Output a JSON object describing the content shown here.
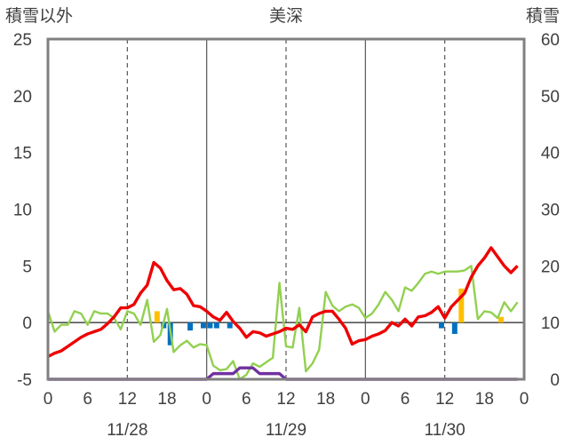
{
  "chart_data": {
    "type": "line",
    "title": "美深",
    "left_axis_label": "積雪以外",
    "right_axis_label": "積雪",
    "left_ylim": [
      -5,
      25
    ],
    "left_yticks": [
      -5,
      0,
      5,
      10,
      15,
      20,
      25
    ],
    "right_ylim": [
      0,
      60
    ],
    "right_yticks": [
      0,
      10,
      20,
      30,
      40,
      50,
      60
    ],
    "x_range_hours": [
      0,
      72
    ],
    "x_tick_labels": [
      "0",
      "6",
      "12",
      "18",
      "0",
      "6",
      "12",
      "18",
      "0",
      "6",
      "12",
      "18",
      "0"
    ],
    "date_labels": [
      "11/28",
      "11/29",
      "11/30"
    ],
    "grid": true,
    "colors": {
      "temperature": "#ee0000",
      "dewpoint": "#92d050",
      "snow_depth": "#7030a0",
      "precipitation": "#ffc000",
      "snow_change": "#0070c0",
      "axis_label": "#404040",
      "frame": "#808080"
    },
    "series": [
      {
        "key": "temperature",
        "x": [
          0,
          1,
          2,
          3,
          4,
          5,
          6,
          7,
          8,
          9,
          10,
          11,
          12,
          13,
          14,
          15,
          16,
          17,
          18,
          19,
          20,
          21,
          22,
          23,
          24,
          25,
          26,
          27,
          28,
          29,
          30,
          31,
          32,
          33,
          34,
          35,
          36,
          37,
          38,
          39,
          40,
          41,
          42,
          43,
          44,
          45,
          46,
          47,
          48,
          49,
          50,
          51,
          52,
          53,
          54,
          55,
          56,
          57,
          58,
          59,
          60,
          61,
          62,
          63,
          64,
          65,
          66,
          67,
          68,
          69,
          70,
          71
        ],
        "y": [
          -3,
          -2.7,
          -2.5,
          -2.1,
          -1.7,
          -1.3,
          -1,
          -0.8,
          -0.6,
          -0.1,
          0.5,
          1.3,
          1.3,
          1.6,
          2.6,
          3.3,
          5.3,
          4.8,
          3.7,
          2.9,
          3.0,
          2.5,
          1.5,
          1.4,
          1.0,
          0.5,
          0.2,
          0.9,
          0.1,
          -0.5,
          -1.3,
          -0.8,
          -0.9,
          -1.2,
          -1.0,
          -0.8,
          -0.5,
          -0.6,
          -0.2,
          -0.8,
          0.5,
          0.8,
          1.0,
          1.0,
          0.3,
          -0.5,
          -1.9,
          -1.6,
          -1.5,
          -1.2,
          -1.0,
          -0.7,
          0,
          -0.3,
          0.3,
          -0.3,
          0.5,
          0.6,
          0.9,
          1.4,
          0.4,
          1.4,
          2.0,
          2.6,
          4.0,
          5.0,
          5.7,
          6.6,
          5.8,
          5.0,
          4.4,
          5.0
        ]
      },
      {
        "key": "dewpoint",
        "x": [
          0,
          1,
          2,
          3,
          4,
          5,
          6,
          7,
          8,
          9,
          10,
          11,
          12,
          13,
          14,
          15,
          16,
          17,
          18,
          19,
          20,
          21,
          22,
          23,
          24,
          25,
          26,
          27,
          28,
          29,
          30,
          31,
          32,
          33,
          34,
          35,
          36,
          37,
          38,
          39,
          40,
          41,
          42,
          43,
          44,
          45,
          46,
          47,
          48,
          49,
          50,
          51,
          52,
          53,
          54,
          55,
          56,
          57,
          58,
          59,
          60,
          61,
          62,
          63,
          64,
          65,
          66,
          67,
          68,
          69,
          70,
          71
        ],
        "y": [
          1,
          -0.8,
          -0.2,
          -0.2,
          1.0,
          0.8,
          -0.2,
          1.0,
          0.8,
          0.8,
          0.4,
          -0.6,
          1.0,
          0.8,
          -0.2,
          2.0,
          -1.7,
          -1.1,
          1.2,
          -2.6,
          -2.0,
          -1.6,
          -2.2,
          -1.9,
          -2.0,
          -3.8,
          -4.2,
          -4.1,
          -3.4,
          -5.0,
          -4.6,
          -3.6,
          -3.9,
          -3.5,
          -3.1,
          3.5,
          -2.1,
          -2.2,
          1.3,
          -4.3,
          -3.6,
          -2.4,
          2.7,
          1.5,
          1.0,
          1.4,
          1.6,
          1.3,
          0.4,
          0.8,
          1.6,
          2.7,
          2.0,
          1.0,
          3.1,
          2.8,
          3.5,
          4.3,
          4.5,
          4.3,
          4.5,
          4.5,
          4.5,
          4.6,
          5.0,
          0.3,
          1.0,
          0.9,
          0.4,
          1.8,
          1.0,
          1.8
        ]
      },
      {
        "key": "snow_depth",
        "x": [
          0,
          1,
          2,
          3,
          4,
          5,
          6,
          7,
          8,
          9,
          10,
          11,
          12,
          13,
          14,
          15,
          16,
          17,
          18,
          19,
          20,
          21,
          22,
          23,
          24,
          25,
          26,
          27,
          28,
          29,
          30,
          31,
          32,
          33,
          34,
          35,
          36,
          37,
          38,
          39,
          40,
          41,
          42,
          43,
          44,
          45,
          46,
          47,
          48,
          49,
          50,
          51,
          52,
          53,
          54,
          55,
          56,
          57,
          58,
          59,
          60,
          61,
          62,
          63,
          64,
          65,
          66,
          67,
          68,
          69,
          70,
          71
        ],
        "y_right": [
          0,
          0,
          0,
          0,
          0,
          0,
          0,
          0,
          0,
          0,
          0,
          0,
          0,
          0,
          0,
          0,
          0,
          0,
          0,
          0,
          0,
          0,
          0,
          0,
          0,
          1,
          1,
          1,
          1,
          2,
          2,
          2,
          1,
          1,
          1,
          1,
          0,
          0,
          0,
          0,
          0,
          0,
          0,
          0,
          0,
          0,
          0,
          0,
          0,
          0,
          0,
          0,
          0,
          0,
          0,
          0,
          0,
          0,
          0,
          0,
          0,
          0,
          0,
          0,
          0,
          0,
          0,
          0,
          0,
          0,
          0,
          0
        ]
      },
      {
        "key": "precipitation",
        "x": [
          16,
          62,
          68
        ],
        "y": [
          1.0,
          3.0,
          0.5
        ]
      },
      {
        "key": "snow_change",
        "x": [
          17,
          18,
          21,
          23,
          24,
          25,
          27,
          59,
          61
        ],
        "y": [
          -0.5,
          -2.0,
          -0.7,
          -0.5,
          -0.5,
          -0.5,
          -0.5,
          -0.5,
          -1.0
        ]
      }
    ]
  }
}
